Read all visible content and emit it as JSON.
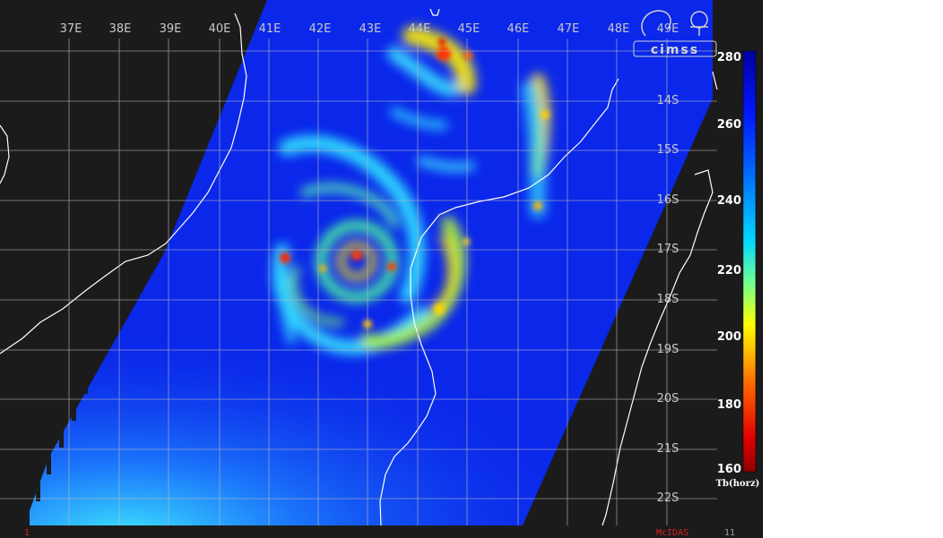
{
  "colors": {
    "background": "#1b1b1b",
    "ocean_base": "#0a22e6",
    "coast": "#ffffff",
    "grid": "#bdbdbd",
    "label_gray": "#c8c8c8",
    "label_white": "#ffffff",
    "footer_red": "#d42020"
  },
  "map": {
    "lon_labels": [
      "37E",
      "38E",
      "39E",
      "40E",
      "41E",
      "42E",
      "43E",
      "44E",
      "45E",
      "46E",
      "47E",
      "48E",
      "49E"
    ],
    "lat_labels": [
      "14S",
      "15S",
      "16S",
      "17S",
      "18S",
      "19S",
      "20S",
      "21S",
      "22S"
    ],
    "projection_note": ""
  },
  "colorbar": {
    "ticks": [
      "280",
      "260",
      "240",
      "220",
      "200",
      "180",
      "160"
    ],
    "tick_values": [
      280,
      260,
      240,
      220,
      200,
      180,
      160
    ],
    "unit": "Tb(horz)",
    "vmin": 160,
    "vmax": 280
  },
  "logo": {
    "text": "cimss"
  },
  "footer": {
    "left_index": "1",
    "software": "McIDAS",
    "right_index": "11"
  }
}
